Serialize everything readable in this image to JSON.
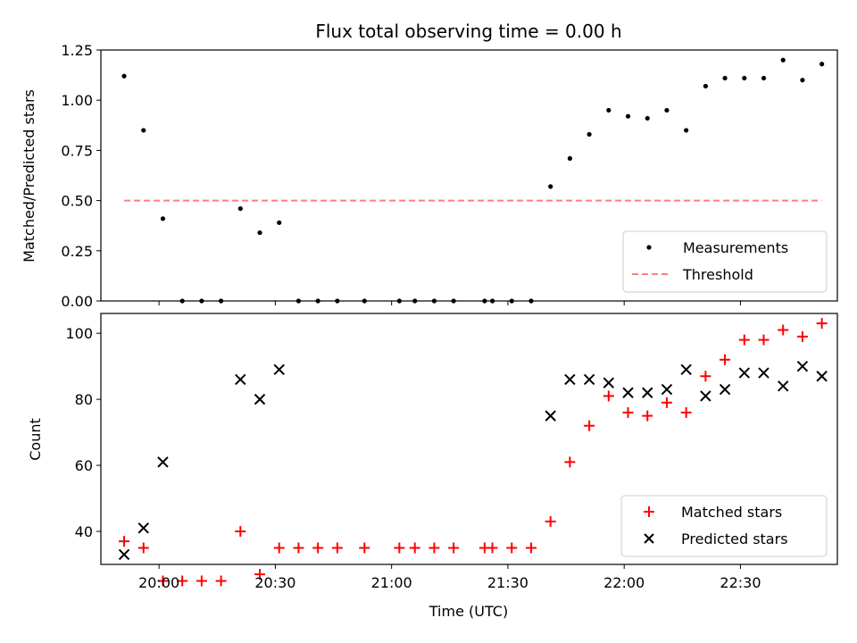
{
  "chart_data": [
    {
      "type": "scatter",
      "title": "Flux total observing time = 0.00 h",
      "xlabel": "",
      "ylabel": "Matched/Predicted stars",
      "xlim": [
        "19:45",
        "22:55"
      ],
      "ylim": [
        0,
        1.25
      ],
      "yticks": [
        "0.00",
        "0.25",
        "0.50",
        "0.75",
        "1.00",
        "1.25"
      ],
      "legend_position": "bottom-right",
      "series": [
        {
          "name": "Measurements",
          "kind": "points",
          "color": "#000000",
          "x": [
            "19:51",
            "19:56",
            "20:01",
            "20:06",
            "20:11",
            "20:16",
            "20:21",
            "20:26",
            "20:31",
            "20:36",
            "20:41",
            "20:46",
            "20:53",
            "21:02",
            "21:06",
            "21:11",
            "21:16",
            "21:24",
            "21:26",
            "21:31",
            "21:36",
            "21:41",
            "21:46",
            "21:51",
            "21:56",
            "22:01",
            "22:06",
            "22:11",
            "22:16",
            "22:21",
            "22:26",
            "22:31",
            "22:36",
            "22:41",
            "22:46",
            "22:51"
          ],
          "y": [
            1.12,
            0.85,
            0.41,
            0,
            0,
            0,
            0.46,
            0.34,
            0.39,
            0,
            0,
            0,
            0,
            0,
            0,
            0,
            0,
            0,
            0,
            0,
            0,
            0.57,
            0.71,
            0.83,
            0.95,
            0.92,
            0.91,
            0.95,
            0.85,
            1.07,
            1.11,
            1.11,
            1.11,
            1.2,
            1.1,
            1.18
          ]
        },
        {
          "name": "Threshold",
          "kind": "dashed-line",
          "color": "#ff7f7f",
          "x": [
            "19:51",
            "22:51"
          ],
          "y": [
            0.5,
            0.5
          ]
        }
      ]
    },
    {
      "type": "scatter",
      "title": "",
      "xlabel": "Time (UTC)",
      "ylabel": "Count",
      "xlim": [
        "19:45",
        "22:55"
      ],
      "ylim": [
        30,
        106
      ],
      "yticks": [
        "40",
        "60",
        "80",
        "100"
      ],
      "xticks": [
        "20:00",
        "20:30",
        "21:00",
        "21:30",
        "22:00",
        "22:30"
      ],
      "legend_position": "bottom-right",
      "series": [
        {
          "name": "Matched stars",
          "kind": "plus",
          "color": "#ff0000",
          "x": [
            "19:51",
            "19:56",
            "20:01",
            "20:06",
            "20:11",
            "20:16",
            "20:21",
            "20:26",
            "20:31",
            "20:36",
            "20:41",
            "20:46",
            "20:53",
            "21:02",
            "21:06",
            "21:11",
            "21:16",
            "21:24",
            "21:26",
            "21:31",
            "21:36",
            "21:41",
            "21:46",
            "21:51",
            "21:56",
            "22:01",
            "22:06",
            "22:11",
            "22:16",
            "22:21",
            "22:26",
            "22:31",
            "22:36",
            "22:41",
            "22:46",
            "22:51"
          ],
          "y": [
            37,
            35,
            25,
            25,
            25,
            25,
            40,
            27,
            35,
            35,
            35,
            35,
            35,
            35,
            35,
            35,
            35,
            35,
            35,
            35,
            35,
            43,
            61,
            72,
            81,
            76,
            75,
            79,
            76,
            87,
            92,
            98,
            98,
            101,
            99,
            103
          ]
        },
        {
          "name": "Predicted stars",
          "kind": "x",
          "color": "#000000",
          "x": [
            "19:51",
            "19:56",
            "20:01",
            "20:21",
            "20:26",
            "20:31",
            "21:41",
            "21:46",
            "21:51",
            "21:56",
            "22:01",
            "22:06",
            "22:11",
            "22:16",
            "22:21",
            "22:26",
            "22:31",
            "22:36",
            "22:41",
            "22:46",
            "22:51"
          ],
          "y": [
            33,
            41,
            61,
            86,
            80,
            89,
            75,
            86,
            86,
            85,
            82,
            82,
            83,
            89,
            81,
            83,
            88,
            88,
            84,
            90,
            87
          ]
        }
      ]
    }
  ]
}
